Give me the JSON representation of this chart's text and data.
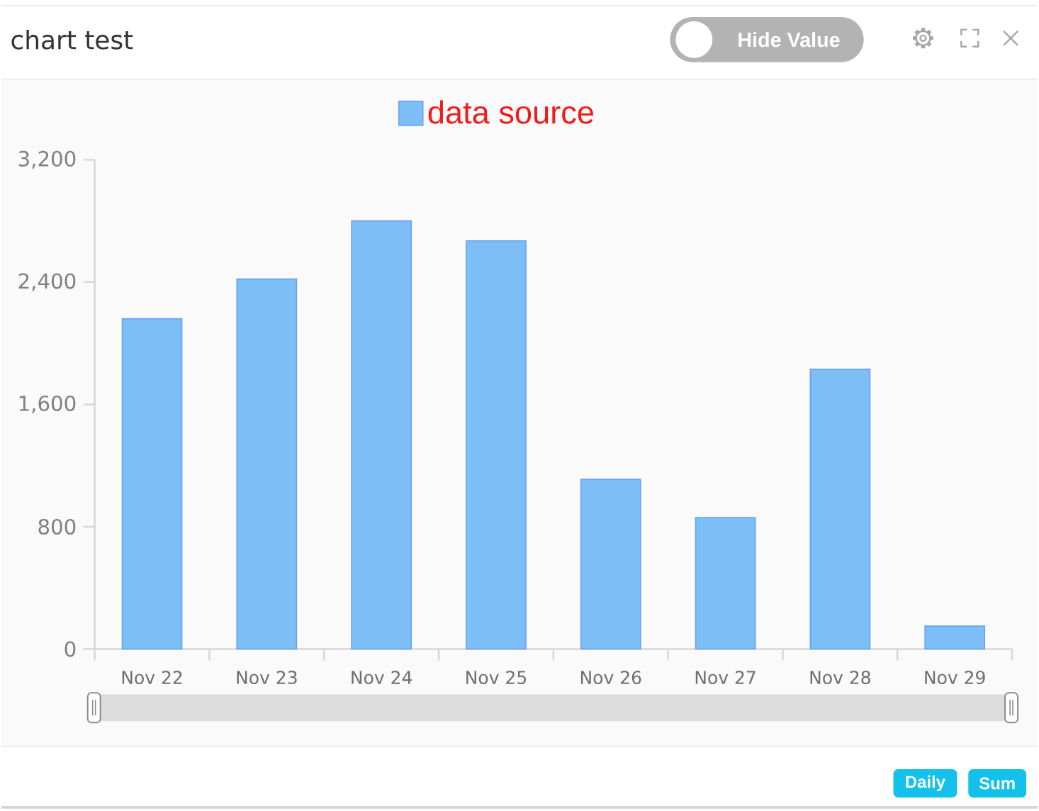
{
  "chart_data": {
    "type": "bar",
    "title": "chart test",
    "categories": [
      "Nov 22",
      "Nov 23",
      "Nov 24",
      "Nov 25",
      "Nov 26",
      "Nov 27",
      "Nov 28",
      "Nov 29"
    ],
    "series": [
      {
        "name": "data source",
        "color": "#7cbef5",
        "values": [
          2160,
          2420,
          2800,
          2670,
          1110,
          860,
          1830,
          150
        ]
      }
    ],
    "ylim": [
      0,
      3200
    ],
    "yticks": [
      0,
      800,
      {
        "value": 1600,
        "label": "1,600"
      },
      {
        "value": 2400,
        "label": "2,400"
      },
      {
        "value": 3200,
        "label": "3,200"
      }
    ],
    "legend": "top",
    "annotations": [
      "Hide Value",
      "Daily",
      "Sum"
    ]
  }
}
